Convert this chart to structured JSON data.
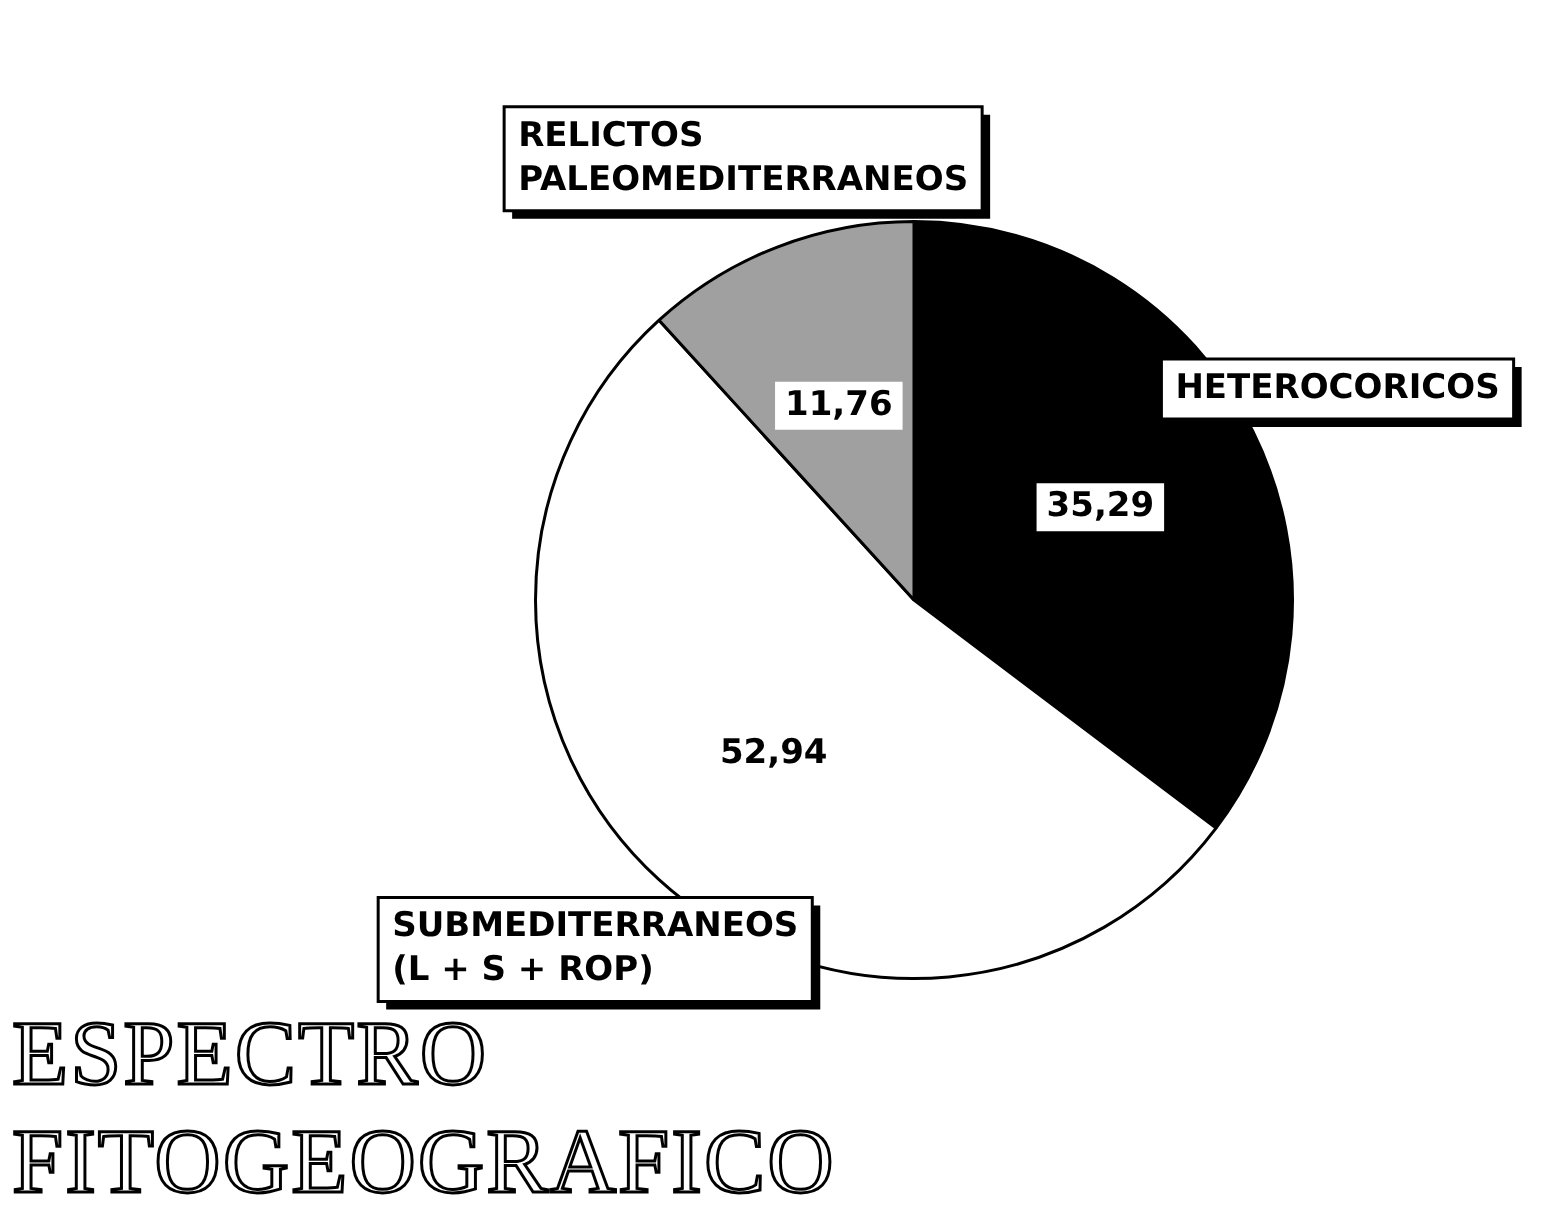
{
  "chart_data": {
    "type": "pie",
    "title": "ESPECTRO FITOGEOGRAFICO",
    "categories": [
      "HETEROCORICOS",
      "SUBMEDITERRANEOS (L + S + ROP)",
      "RELICTOS PALEOMEDITERRANEOS"
    ],
    "values": [
      35.29,
      52.94,
      11.76
    ],
    "colors": [
      "#000000",
      "#ffffff",
      "#a0a0a0"
    ],
    "value_labels": [
      "35,29",
      "52,94",
      "11,76"
    ],
    "legend": false
  }
}
